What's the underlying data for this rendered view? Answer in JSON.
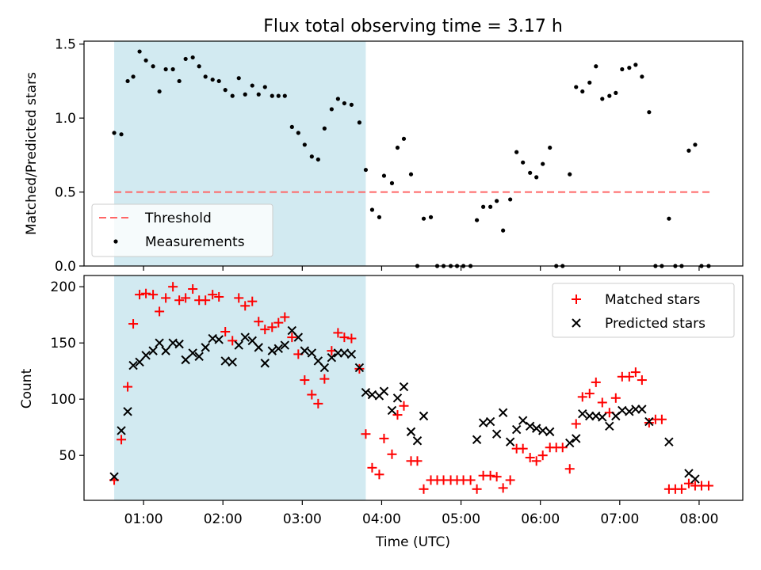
{
  "title": "Flux total observing time = 3.17 h",
  "colors": {
    "shade": "#add8e6",
    "threshold": "#ff6666",
    "matched": "#ff0000",
    "predicted": "#000000",
    "measurements": "#000000"
  },
  "chart_data": [
    {
      "type": "scatter",
      "title": "Flux total observing time = 3.17 h",
      "xlabel": "",
      "ylabel": "Matched/Predicted stars",
      "x_unit": "hours UTC",
      "xlim": [
        0.25,
        8.55
      ],
      "ylim": [
        0.0,
        1.52
      ],
      "yticks": [
        "0.0",
        "0.5",
        "1.0",
        "1.5"
      ],
      "grid": false,
      "legend": {
        "placement": "lower-left",
        "entries": [
          "Threshold",
          "Measurements"
        ]
      },
      "shaded_x_range": [
        0.63,
        3.8
      ],
      "threshold": {
        "name": "Threshold",
        "y": 0.5,
        "x": [
          0.63,
          8.17
        ]
      },
      "series": [
        {
          "name": "Measurements",
          "marker": "dot",
          "x": [
            0.63,
            0.72,
            0.8,
            0.87,
            0.95,
            1.03,
            1.12,
            1.2,
            1.28,
            1.37,
            1.45,
            1.53,
            1.62,
            1.7,
            1.78,
            1.87,
            1.95,
            2.03,
            2.12,
            2.2,
            2.28,
            2.37,
            2.45,
            2.53,
            2.62,
            2.7,
            2.78,
            2.87,
            2.95,
            3.03,
            3.12,
            3.2,
            3.28,
            3.37,
            3.45,
            3.53,
            3.62,
            3.72,
            3.8,
            3.88,
            3.97,
            4.03,
            4.13,
            4.2,
            4.28,
            4.37,
            4.45,
            4.53,
            4.62,
            4.7,
            4.78,
            4.87,
            4.95,
            5.03,
            5.12,
            5.2,
            5.28,
            5.37,
            5.45,
            5.53,
            5.62,
            5.7,
            5.78,
            5.87,
            5.95,
            6.03,
            6.12,
            6.2,
            6.28,
            6.37,
            6.45,
            6.53,
            6.62,
            6.7,
            6.78,
            6.87,
            6.95,
            7.03,
            7.12,
            7.2,
            7.28,
            7.37,
            7.45,
            7.53,
            7.62,
            7.7,
            7.78,
            7.87,
            7.95,
            8.03,
            8.12
          ],
          "y": [
            0.9,
            0.89,
            1.25,
            1.28,
            1.45,
            1.39,
            1.35,
            1.18,
            1.33,
            1.33,
            1.25,
            1.4,
            1.41,
            1.35,
            1.28,
            1.26,
            1.25,
            1.19,
            1.15,
            1.27,
            1.16,
            1.22,
            1.16,
            1.21,
            1.15,
            1.15,
            1.15,
            0.94,
            0.9,
            0.82,
            0.74,
            0.72,
            0.93,
            1.06,
            1.13,
            1.1,
            1.09,
            0.97,
            0.65,
            0.38,
            0.33,
            0.61,
            0.56,
            0.8,
            0.86,
            0.62,
            0.0,
            0.32,
            0.33,
            0.0,
            0.0,
            0.0,
            0.0,
            0.0,
            0.0,
            0.31,
            0.4,
            0.4,
            0.44,
            0.24,
            0.45,
            0.77,
            0.7,
            0.63,
            0.6,
            0.69,
            0.8,
            0.0,
            0.0,
            0.62,
            1.21,
            1.18,
            1.24,
            1.35,
            1.13,
            1.15,
            1.17,
            1.33,
            1.34,
            1.36,
            1.28,
            1.04,
            0.0,
            0.0,
            0.32,
            0.0,
            0.0,
            0.78,
            0.82,
            0.0,
            0.0
          ]
        }
      ]
    },
    {
      "type": "scatter",
      "xlabel": "Time (UTC)",
      "ylabel": "Count",
      "x_unit": "hours UTC",
      "xlim": [
        0.25,
        8.55
      ],
      "ylim": [
        10,
        210
      ],
      "xticks": [
        "01:00",
        "02:00",
        "03:00",
        "04:00",
        "05:00",
        "06:00",
        "07:00",
        "08:00"
      ],
      "yticks": [
        "50",
        "100",
        "150",
        "200"
      ],
      "grid": false,
      "legend": {
        "placement": "top-right",
        "entries": [
          "Matched stars",
          "Predicted stars"
        ]
      },
      "shaded_x_range": [
        0.63,
        3.8
      ],
      "series": [
        {
          "name": "Matched stars",
          "marker": "plus",
          "x": [
            0.63,
            0.72,
            0.8,
            0.87,
            0.95,
            1.03,
            1.12,
            1.2,
            1.28,
            1.37,
            1.45,
            1.53,
            1.62,
            1.7,
            1.78,
            1.87,
            1.95,
            2.03,
            2.12,
            2.2,
            2.28,
            2.37,
            2.45,
            2.53,
            2.62,
            2.7,
            2.78,
            2.87,
            2.95,
            3.03,
            3.12,
            3.2,
            3.28,
            3.37,
            3.45,
            3.53,
            3.62,
            3.72,
            3.8,
            3.88,
            3.97,
            4.03,
            4.13,
            4.2,
            4.28,
            4.37,
            4.45,
            4.53,
            4.62,
            4.7,
            4.78,
            4.87,
            4.95,
            5.03,
            5.12,
            5.2,
            5.28,
            5.37,
            5.45,
            5.53,
            5.62,
            5.7,
            5.78,
            5.87,
            5.95,
            6.03,
            6.12,
            6.2,
            6.28,
            6.37,
            6.45,
            6.53,
            6.62,
            6.7,
            6.78,
            6.87,
            6.95,
            7.03,
            7.12,
            7.2,
            7.28,
            7.37,
            7.45,
            7.53,
            7.62,
            7.7,
            7.78,
            7.87,
            7.95,
            8.03,
            8.12
          ],
          "y": [
            28,
            64,
            111,
            167,
            193,
            194,
            193,
            178,
            190,
            200,
            188,
            190,
            198,
            188,
            188,
            193,
            191,
            160,
            152,
            190,
            183,
            187,
            169,
            162,
            164,
            168,
            173,
            155,
            140,
            117,
            104,
            96,
            118,
            143,
            159,
            155,
            154,
            127,
            69,
            39,
            33,
            65,
            51,
            86,
            94,
            45,
            45,
            20,
            28,
            28,
            28,
            28,
            28,
            28,
            28,
            20,
            32,
            32,
            31,
            21,
            28,
            56,
            56,
            48,
            45,
            50,
            57,
            57,
            57,
            38,
            78,
            102,
            105,
            115,
            97,
            88,
            101,
            120,
            120,
            124,
            117,
            79,
            82,
            82,
            20,
            20,
            20,
            25,
            23,
            23,
            23
          ]
        },
        {
          "name": "Predicted stars",
          "marker": "x",
          "x": [
            0.63,
            0.72,
            0.8,
            0.87,
            0.95,
            1.03,
            1.12,
            1.2,
            1.28,
            1.37,
            1.45,
            1.53,
            1.62,
            1.7,
            1.78,
            1.87,
            1.95,
            2.03,
            2.12,
            2.2,
            2.28,
            2.37,
            2.45,
            2.53,
            2.62,
            2.7,
            2.78,
            2.87,
            2.95,
            3.03,
            3.12,
            3.2,
            3.28,
            3.37,
            3.45,
            3.53,
            3.62,
            3.72,
            3.8,
            3.88,
            3.97,
            4.03,
            4.13,
            4.2,
            4.28,
            4.37,
            4.45,
            4.53,
            5.2,
            5.28,
            5.37,
            5.45,
            5.53,
            5.62,
            5.7,
            5.78,
            5.87,
            5.95,
            6.03,
            6.12,
            6.37,
            6.45,
            6.53,
            6.62,
            6.7,
            6.78,
            6.87,
            6.95,
            7.03,
            7.12,
            7.2,
            7.28,
            7.37,
            7.62,
            7.87,
            7.95
          ],
          "y": [
            31,
            72,
            89,
            130,
            133,
            139,
            143,
            150,
            143,
            150,
            149,
            135,
            141,
            138,
            146,
            154,
            153,
            134,
            133,
            148,
            155,
            152,
            146,
            132,
            143,
            145,
            148,
            161,
            155,
            143,
            141,
            134,
            128,
            137,
            141,
            141,
            140,
            128,
            106,
            104,
            103,
            107,
            90,
            101,
            111,
            71,
            63,
            85,
            64,
            79,
            80,
            69,
            88,
            62,
            73,
            81,
            76,
            74,
            72,
            71,
            61,
            65,
            87,
            85,
            85,
            84,
            76,
            85,
            90,
            89,
            91,
            91,
            80,
            62,
            34,
            29
          ]
        }
      ]
    }
  ]
}
